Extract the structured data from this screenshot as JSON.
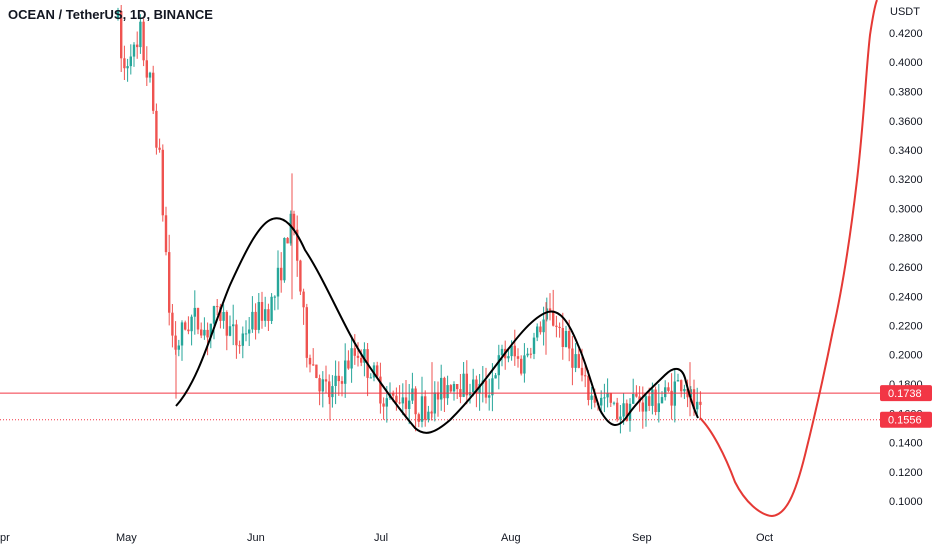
{
  "header": {
    "title": "OCEAN / TetherUS, 1D, BINANCE"
  },
  "chart_data": {
    "type": "candlestick",
    "currency_label": "USDT",
    "y_ticks": [
      "0.4200",
      "0.4000",
      "0.3800",
      "0.3600",
      "0.3400",
      "0.3200",
      "0.3000",
      "0.2800",
      "0.2600",
      "0.2400",
      "0.2200",
      "0.2000",
      "0.1800",
      "0.1600",
      "0.1400",
      "0.1200",
      "0.1000"
    ],
    "x_ticks": [
      "pr",
      "May",
      "Jun",
      "Jul",
      "Aug",
      "Sep",
      "Oct"
    ],
    "ylim": [
      0.0875,
      0.4365
    ],
    "last_price": "0.1556",
    "resistance_level": "0.1738",
    "colors": {
      "up": "#26a69a",
      "down": "#ef5350",
      "projection": "#e53935",
      "pattern": "#000000",
      "level": "#f23645"
    },
    "candle_clusters": [
      {
        "period": "early May",
        "open_range": [
          0.37,
          0.44
        ]
      },
      {
        "period": "mid May",
        "range": [
          0.17,
          0.3
        ]
      },
      {
        "period": "June peak",
        "high": 0.324
      },
      {
        "period": "early July",
        "range": [
          0.155,
          0.21
        ]
      },
      {
        "period": "early Aug peak",
        "high": 0.236
      },
      {
        "period": "late Aug",
        "range": [
          0.15,
          0.19
        ]
      },
      {
        "period": "mid Sep",
        "range": [
          0.155,
          0.195
        ]
      }
    ]
  }
}
